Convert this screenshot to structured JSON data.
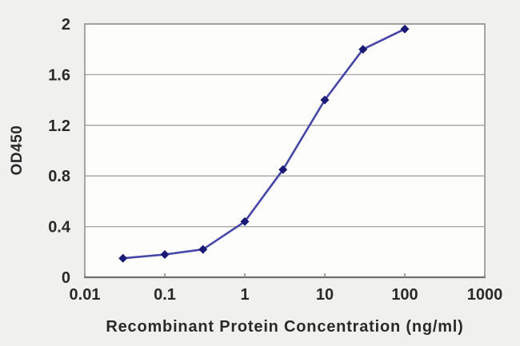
{
  "figure": {
    "background": "#f0f0ee",
    "plot_background": "#fdfdfc",
    "border_color": "#8c8c8c",
    "axis_color": "#6f6f6f",
    "grid_color": "#a2a2a2",
    "line_color": "#4646a6",
    "marker_color": "#1a1a75",
    "text_color": "#2a2a2a"
  },
  "chart_data": {
    "type": "line",
    "title": "",
    "xlabel": "Recombinant Protein Concentration (ng/ml)",
    "ylabel": "OD450",
    "x_scale": "log",
    "y_scale": "linear",
    "xlim": [
      0.01,
      1000
    ],
    "ylim": [
      0,
      2
    ],
    "x_ticks": [
      "0.01",
      "0.1",
      "1",
      "10",
      "100",
      "1000"
    ],
    "y_ticks": [
      "0",
      "0.4",
      "0.8",
      "1.2",
      "1.6",
      "2"
    ],
    "grid": "horizontal",
    "legend": "none",
    "marker": "diamond",
    "x": [
      0.03,
      0.1,
      0.3,
      1,
      3,
      10,
      30,
      100
    ],
    "y": [
      0.15,
      0.18,
      0.22,
      0.44,
      0.85,
      1.4,
      1.8,
      1.96
    ]
  }
}
